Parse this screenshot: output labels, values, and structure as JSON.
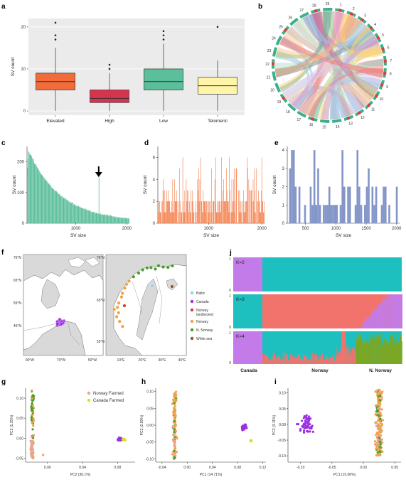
{
  "panels": {
    "a": "a",
    "b": "b",
    "c": "c",
    "d": "d",
    "e": "e",
    "f": "f",
    "g": "g",
    "h": "h",
    "i": "i",
    "j": "j"
  },
  "colors": {
    "elevated": "#f26b3a",
    "high": "#d6334f",
    "low": "#5cbf9b",
    "telomeric": "#fff5a8",
    "hist_c": "#5cbf9b",
    "hist_d": "#f4895a",
    "hist_e": "#8496c8",
    "canada": "#9b30e0",
    "norway": "#f0a347",
    "n_norway": "#4a9c2e",
    "baltic": "#8fd3e8",
    "norway_landlocked": "#d33f3f",
    "white_sea": "#a14d2d",
    "norway_farmed": "#e9a39a",
    "canada_farmed": "#d8e020",
    "admix_teal": "#1ebfbf",
    "admix_purple": "#c27be8",
    "admix_salmon": "#f2736b",
    "admix_green": "#7ea61f"
  },
  "chart_data": [
    {
      "panel": "a",
      "type": "box",
      "categories": [
        "Elevated",
        "High",
        "Low",
        "Telomeric"
      ],
      "ylabel": "SV count",
      "yticks": [
        0,
        10,
        20
      ],
      "ylim": [
        -1,
        22
      ],
      "boxes": [
        {
          "min": 0,
          "q1": 5,
          "median": 7,
          "q3": 9,
          "max": 15,
          "outliers": [
            17,
            18,
            21
          ]
        },
        {
          "min": 0,
          "q1": 2,
          "median": 3,
          "q3": 5,
          "max": 9,
          "outliers": [
            10,
            11
          ]
        },
        {
          "min": 0,
          "q1": 5,
          "median": 7,
          "q3": 10,
          "max": 16,
          "outliers": [
            17,
            18,
            19
          ]
        },
        {
          "min": 0,
          "q1": 4,
          "median": 6,
          "q3": 8,
          "max": 12,
          "outliers": [
            20
          ]
        }
      ]
    },
    {
      "panel": "b",
      "type": "chord",
      "labels": [
        "1",
        "2",
        "3",
        "4",
        "5",
        "6",
        "7",
        "8",
        "9",
        "10",
        "11",
        "12",
        "13",
        "14",
        "15",
        "16",
        "17",
        "18",
        "19",
        "20",
        "21",
        "22",
        "23",
        "24",
        "25",
        "26",
        "27",
        "28",
        "29"
      ]
    },
    {
      "panel": "c",
      "type": "histogram",
      "xlabel": "SV size",
      "ylabel": "SV count",
      "xticks": [
        1000,
        2000
      ],
      "yticks": [
        0,
        100,
        200
      ],
      "xlim": [
        50,
        2050
      ],
      "ylim": [
        0,
        250
      ],
      "annotation": "arrow at ~1450"
    },
    {
      "panel": "d",
      "type": "histogram",
      "xlabel": "SV size",
      "ylabel": "SV count",
      "xticks": [
        1000,
        2000
      ],
      "yticks": [
        0,
        2,
        4,
        6
      ],
      "xlim": [
        50,
        2050
      ],
      "ylim": [
        0,
        7
      ]
    },
    {
      "panel": "e",
      "type": "histogram",
      "xlabel": "SV size",
      "ylabel": "SV count",
      "xticks": [
        500,
        1000,
        1500,
        2000
      ],
      "yticks": [
        0,
        1,
        2,
        3,
        4
      ],
      "xlim": [
        200,
        2050
      ],
      "ylim": [
        0,
        4.2
      ]
    },
    {
      "panel": "f",
      "type": "map",
      "left_lat": [
        "75°N",
        "65°N",
        "55°N",
        "45°N"
      ],
      "left_lon": [
        "90°W",
        "70°W",
        "50°W"
      ],
      "right_lat": [
        "75°N",
        "65°N",
        "55°N"
      ],
      "right_lon": [
        "10°E",
        "20°E",
        "30°E",
        "40°E"
      ],
      "legend": [
        "Baltic",
        "Canada",
        "Norway landlocked",
        "Norway",
        "N. Norway",
        "White sea"
      ]
    },
    {
      "panel": "g",
      "type": "scatter",
      "xlabel": "PC2 (30.1%)",
      "ylabel": "PC2 (1.35%)",
      "xticks": [
        "0.00",
        "0.04",
        "0.08"
      ],
      "yticks": [
        "-0.05",
        "0.00",
        "0.05",
        "0.10"
      ],
      "legend": [
        "Norway Farmed",
        "Canada Farmed"
      ]
    },
    {
      "panel": "h",
      "type": "scatter",
      "xlabel": "PC1 (14.71%)",
      "ylabel": "PC2 (2.89%)",
      "xticks": [
        "-0.04",
        "0.00",
        "0.04",
        "0.08",
        "0.12"
      ],
      "yticks": [
        "-0.10",
        "-0.05",
        "0.00",
        "0.05",
        "0.10"
      ]
    },
    {
      "panel": "i",
      "type": "scatter",
      "xlabel": "PC1 (15.06%)",
      "ylabel": "PC2 (3.11%)",
      "xticks": [
        "-0.10",
        "-0.05",
        "0.00",
        "0.05"
      ],
      "yticks": [
        "-0.10",
        "-0.05",
        "0.00",
        "0.05",
        "0.10"
      ]
    },
    {
      "panel": "j",
      "type": "admixture",
      "k_labels": [
        "K=2",
        "K=3",
        "K=4"
      ],
      "yticks": [
        "0",
        "1"
      ],
      "groups": [
        "Canada",
        "Norway",
        "N. Norway"
      ]
    }
  ]
}
